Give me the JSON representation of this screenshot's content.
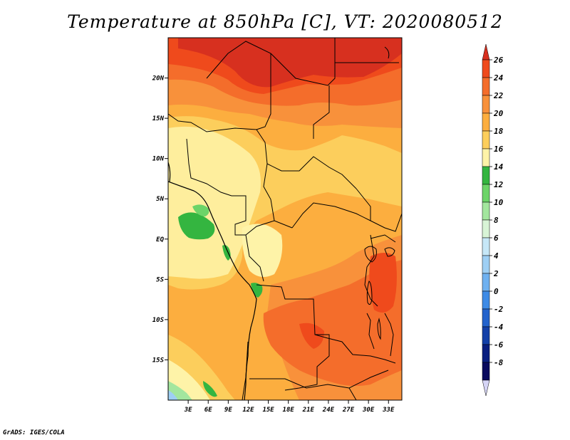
{
  "title": "Temperature at 850hPa [C], VT: 2020080512",
  "footer": "GrADS: IGES/COLA",
  "map": {
    "lon_range": [
      0,
      35
    ],
    "lat_range": [
      -20,
      25
    ],
    "x_ticks": [
      "3E",
      "6E",
      "9E",
      "12E",
      "15E",
      "18E",
      "21E",
      "24E",
      "27E",
      "30E",
      "33E"
    ],
    "y_ticks": [
      "20N",
      "15N",
      "10N",
      "5N",
      "EQ",
      "5S",
      "10S",
      "15S"
    ]
  },
  "colorbar": {
    "labels": [
      "26",
      "24",
      "22",
      "20",
      "18",
      "16",
      "14",
      "12",
      "10",
      "8",
      "6",
      "4",
      "2",
      "0",
      "-2",
      "-4",
      "-6",
      "-8"
    ],
    "colors": [
      "#d7301f",
      "#ef4a1c",
      "#f46d2b",
      "#f8913b",
      "#fcae3f",
      "#fcce5c",
      "#fef3a8",
      "#34b540",
      "#6cd468",
      "#a3e69e",
      "#d8f4d6",
      "#c6e7f7",
      "#9ecff4",
      "#6fb1f0",
      "#3e8be6",
      "#2363cc",
      "#1340a8",
      "#0a1f80",
      "#090a5e",
      "#d5d4f5"
    ]
  }
}
